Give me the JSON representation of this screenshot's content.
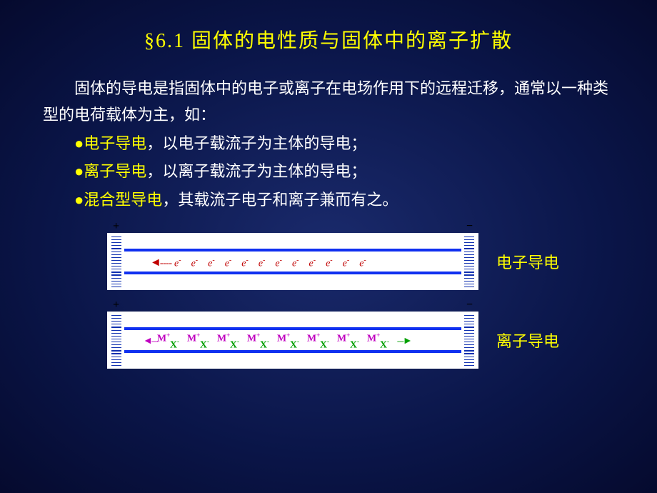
{
  "title": "§6.1 固体的电性质与固体中的离子扩散",
  "paragraph": "固体的导电是指固体中的电子或离子在电场作用下的远程迁移，通常以一种类型的电荷载体为主，如：",
  "bullets": [
    {
      "kw": "电子导电",
      "rest": "，以电子载流子为主体的导电；"
    },
    {
      "kw": "离子导电",
      "rest": "，以离子载流子为主体的导电；"
    },
    {
      "kw": "混合型导电",
      "rest": "，其载流子电子和离子兼而有之。"
    }
  ],
  "diagrams": {
    "electron": {
      "label": "电子导电",
      "sign_left": "+",
      "sign_right": "−",
      "carrier_label": "e",
      "carrier_sup": "-",
      "carrier_count": 12,
      "colors": {
        "carrier": "#c00000",
        "line": "#1030f0",
        "plate_tick": "#1030b0"
      }
    },
    "ion": {
      "label": "离子导电",
      "sign_left": "+",
      "sign_right": "−",
      "cation": {
        "symbol": "M",
        "sup": "+",
        "color": "#c000c0"
      },
      "anion": {
        "symbol": "X",
        "sup": "-",
        "color": "#00a000"
      },
      "pair_count": 8,
      "colors": {
        "line": "#1030f0",
        "plate_tick": "#1030b0"
      }
    }
  },
  "style": {
    "background_center": "#1a2a6c",
    "background_edge": "#050a2e",
    "title_color": "#ffff00",
    "body_color": "#ffffff",
    "bullet_color": "#ffff00",
    "title_fontsize": 28,
    "body_fontsize": 22,
    "slide_width": 920,
    "slide_height": 690
  }
}
